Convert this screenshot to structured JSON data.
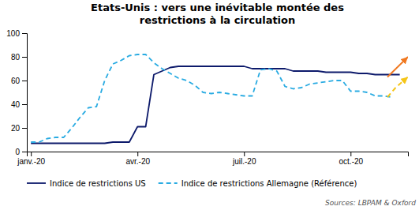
{
  "chart_data": {
    "type": "line",
    "title": "Etats-Unis : vers une inévitable montée des\nrestrictions à la circulation",
    "source": "Sources: LBPAM & Oxford",
    "xlim": [
      -0.5,
      46
    ],
    "xticks": [
      {
        "value": 0,
        "label": "janv.-20"
      },
      {
        "value": 13,
        "label": "avr.-20"
      },
      {
        "value": 26,
        "label": "juil.-20"
      },
      {
        "value": 39,
        "label": "oct.-20"
      }
    ],
    "ylim": [
      0,
      100
    ],
    "yticks": [
      0,
      20,
      40,
      60,
      80,
      100
    ],
    "grid": false,
    "legend": "bottom",
    "series": [
      {
        "name": "Indice de restrictions US",
        "color": "#0d1a6b",
        "line_style": "solid",
        "x": [
          0,
          1,
          2,
          3,
          4,
          5,
          6,
          7,
          8,
          9,
          10,
          11,
          12,
          13,
          14,
          15,
          16,
          17,
          18,
          19,
          20,
          21,
          22,
          23,
          24,
          25,
          26,
          27,
          28,
          29,
          30,
          31,
          32,
          33,
          34,
          35,
          36,
          37,
          38,
          39,
          40,
          41,
          42,
          43,
          44,
          45
        ],
        "values": [
          7,
          7,
          7,
          7,
          7,
          7,
          7,
          7,
          7,
          7,
          8,
          8,
          8,
          21,
          21,
          65,
          68,
          71,
          72,
          72,
          72,
          72,
          72,
          72,
          72,
          72,
          72,
          70,
          70,
          70,
          70,
          70,
          68,
          68,
          68,
          68,
          67,
          67,
          67,
          67,
          66,
          66,
          65,
          65,
          65,
          65
        ]
      },
      {
        "name": "Indice de restrictions Allemagne (Référence)",
        "color": "#29abe2",
        "line_style": "dashed",
        "x": [
          0,
          1,
          2,
          3,
          4,
          5,
          6,
          7,
          8,
          9,
          10,
          11,
          12,
          13,
          14,
          15,
          16,
          17,
          18,
          19,
          20,
          21,
          22,
          23,
          24,
          25,
          26,
          27,
          28,
          29,
          30,
          31,
          32,
          33,
          34,
          35,
          36,
          37,
          38,
          39,
          40,
          41,
          42,
          43,
          44
        ],
        "values": [
          8,
          8,
          11,
          12,
          12,
          20,
          29,
          37,
          38,
          60,
          74,
          77,
          81,
          82,
          82,
          75,
          70,
          66,
          62,
          60,
          56,
          50,
          49,
          50,
          49,
          48,
          47,
          47,
          69,
          70,
          68,
          55,
          53,
          54,
          57,
          58,
          59,
          60,
          60,
          51,
          51,
          50,
          47,
          47,
          46
        ]
      },
      {
        "type": "arrow",
        "color": "#f07820",
        "line_style": "solid",
        "x": [
          43.5,
          46.0
        ],
        "values": [
          63,
          80
        ]
      },
      {
        "type": "arrow",
        "color": "#f5c518",
        "line_style": "dashed",
        "x": [
          43.5,
          44.5,
          46.0
        ],
        "values": [
          46,
          54,
          63
        ]
      }
    ]
  }
}
